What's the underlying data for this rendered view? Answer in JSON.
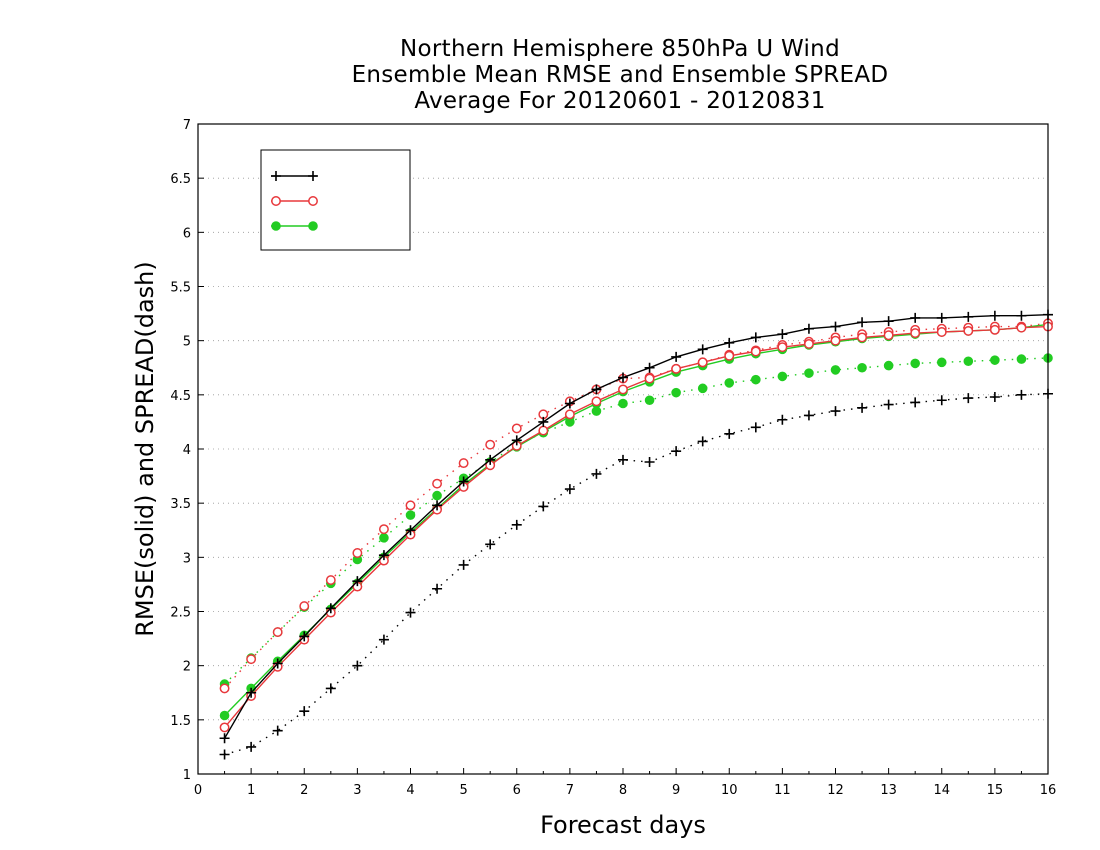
{
  "chart_data": {
    "type": "line",
    "title": [
      "Northern Hemisphere 850hPa U Wind",
      "Ensemble Mean RMSE and Ensemble SPREAD",
      "Average For 20120601 - 20120831"
    ],
    "xlabel": "Forecast days",
    "ylabel": "RMSE(solid) and SPREAD(dash)",
    "xlim": [
      0,
      16
    ],
    "ylim": [
      1,
      7
    ],
    "xticks": [
      0,
      1,
      2,
      3,
      4,
      5,
      6,
      7,
      8,
      9,
      10,
      11,
      12,
      13,
      14,
      15,
      16
    ],
    "yticks": [
      1,
      1.5,
      2,
      2.5,
      3,
      3.5,
      4,
      4.5,
      5,
      5.5,
      6,
      6.5,
      7
    ],
    "grid": "horizontal-dotted",
    "legend_position": "top-left",
    "x": [
      0.5,
      1,
      1.5,
      2,
      2.5,
      3,
      3.5,
      4,
      4.5,
      5,
      5.5,
      6,
      6.5,
      7,
      7.5,
      8,
      8.5,
      9,
      9.5,
      10,
      10.5,
      11,
      11.5,
      12,
      12.5,
      13,
      13.5,
      14,
      14.5,
      15,
      15.5,
      16
    ],
    "series": [
      {
        "legend": "",
        "color": "#000000",
        "marker": "plus",
        "rmse": [
          1.33,
          1.75,
          2.02,
          2.27,
          2.53,
          2.78,
          3.02,
          3.25,
          3.48,
          3.7,
          3.9,
          4.08,
          4.25,
          4.42,
          4.55,
          4.66,
          4.75,
          4.85,
          4.92,
          4.98,
          5.03,
          5.06,
          5.11,
          5.13,
          5.17,
          5.18,
          5.21,
          5.21,
          5.22,
          5.23,
          5.23,
          5.24
        ],
        "spread": [
          1.18,
          1.25,
          1.4,
          1.58,
          1.79,
          2.0,
          2.24,
          2.49,
          2.71,
          2.93,
          3.12,
          3.3,
          3.47,
          3.63,
          3.77,
          3.9,
          3.88,
          3.98,
          4.07,
          4.14,
          4.2,
          4.27,
          4.31,
          4.35,
          4.38,
          4.41,
          4.43,
          4.45,
          4.47,
          4.48,
          4.5,
          4.51
        ]
      },
      {
        "legend": "",
        "color": "#e8383c",
        "marker": "circle",
        "rmse": [
          1.43,
          1.72,
          1.99,
          2.24,
          2.49,
          2.73,
          2.97,
          3.21,
          3.44,
          3.65,
          3.85,
          4.03,
          4.17,
          4.32,
          4.44,
          4.55,
          4.65,
          4.74,
          4.8,
          4.86,
          4.9,
          4.94,
          4.97,
          5.0,
          5.03,
          5.05,
          5.07,
          5.08,
          5.09,
          5.1,
          5.12,
          5.13
        ],
        "spread": [
          1.79,
          2.06,
          2.31,
          2.55,
          2.79,
          3.04,
          3.26,
          3.48,
          3.68,
          3.87,
          4.04,
          4.19,
          4.32,
          4.44,
          4.55,
          4.65,
          4.66,
          4.74,
          4.8,
          4.87,
          4.91,
          4.96,
          4.99,
          5.03,
          5.06,
          5.08,
          5.1,
          5.11,
          5.12,
          5.13,
          5.13,
          5.16
        ]
      },
      {
        "legend": "",
        "color": "#22cc22",
        "marker": "filled-circle",
        "rmse": [
          1.54,
          1.79,
          2.04,
          2.28,
          2.52,
          2.76,
          3.0,
          3.23,
          3.45,
          3.67,
          3.86,
          4.02,
          4.16,
          4.3,
          4.42,
          4.53,
          4.62,
          4.71,
          4.77,
          4.83,
          4.88,
          4.92,
          4.96,
          4.99,
          5.02,
          5.04,
          5.06,
          5.08,
          5.09,
          5.1,
          5.12,
          5.15
        ],
        "spread": [
          1.83,
          2.07,
          2.31,
          2.54,
          2.76,
          2.98,
          3.18,
          3.39,
          3.57,
          3.73,
          3.88,
          4.04,
          4.15,
          4.25,
          4.35,
          4.42,
          4.45,
          4.52,
          4.56,
          4.61,
          4.64,
          4.67,
          4.7,
          4.73,
          4.75,
          4.77,
          4.79,
          4.8,
          4.81,
          4.82,
          4.83,
          4.84
        ]
      }
    ]
  }
}
